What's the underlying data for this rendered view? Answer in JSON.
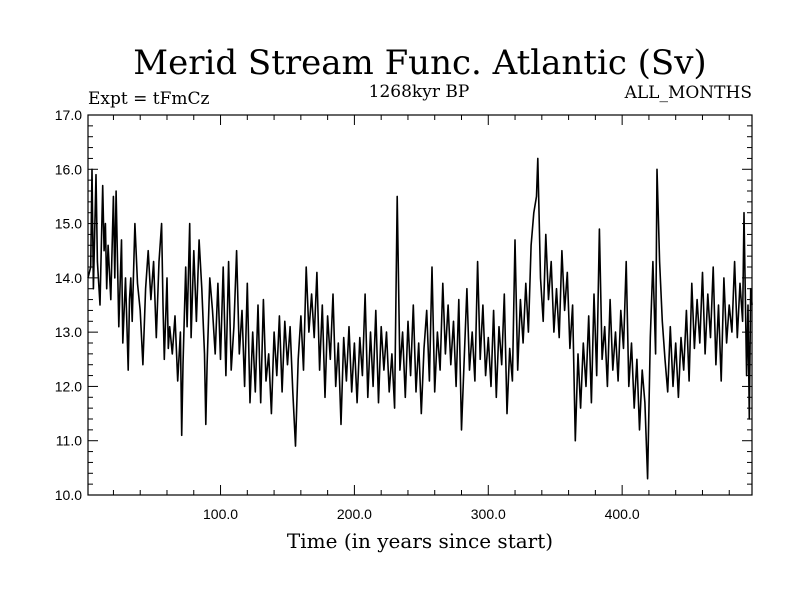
{
  "chart_data": {
    "type": "line",
    "title": "Merid Stream Func. Atlantic (Sv)",
    "subtitle_left": "Expt = tFmCz",
    "subtitle_center": "1268kyr BP",
    "subtitle_right": "ALL_MONTHS",
    "xlabel": "Time (in years since start)",
    "ylabel": "",
    "xlim": [
      1,
      497
    ],
    "ylim": [
      10.0,
      17.0
    ],
    "x_ticks": [
      100,
      200,
      300,
      400
    ],
    "x_tick_labels": [
      "100.0",
      "200.0",
      "300.0",
      "400.0"
    ],
    "x_minor_step": 20,
    "y_ticks": [
      10,
      11,
      12,
      13,
      14,
      15,
      16,
      17
    ],
    "y_tick_labels": [
      "10.0",
      "11.0",
      "12.0",
      "13.0",
      "14.0",
      "15.0",
      "16.0",
      "17.0"
    ],
    "y_minor_step": 0.2,
    "grid": false,
    "series": [
      {
        "name": "Merid Stream Func. Atlantic",
        "points": [
          [
            1,
            14.0
          ],
          [
            3,
            14.2
          ],
          [
            4,
            16.0
          ],
          [
            5,
            13.8
          ],
          [
            7,
            15.9
          ],
          [
            8,
            14.3
          ],
          [
            10,
            13.5
          ],
          [
            12,
            15.7
          ],
          [
            13,
            14.5
          ],
          [
            14,
            15.0
          ],
          [
            15,
            13.8
          ],
          [
            16,
            14.6
          ],
          [
            18,
            13.6
          ],
          [
            20,
            15.5
          ],
          [
            21,
            14.0
          ],
          [
            22,
            15.6
          ],
          [
            24,
            13.1
          ],
          [
            26,
            14.7
          ],
          [
            27,
            12.8
          ],
          [
            29,
            14.0
          ],
          [
            30,
            13.2
          ],
          [
            31,
            12.3
          ],
          [
            32,
            13.6
          ],
          [
            33,
            14.0
          ],
          [
            34,
            13.2
          ],
          [
            36,
            15.0
          ],
          [
            38,
            13.9
          ],
          [
            40,
            13.4
          ],
          [
            42,
            12.4
          ],
          [
            44,
            13.8
          ],
          [
            46,
            14.5
          ],
          [
            48,
            13.6
          ],
          [
            50,
            14.3
          ],
          [
            52,
            12.9
          ],
          [
            54,
            14.3
          ],
          [
            56,
            15.0
          ],
          [
            57,
            13.5
          ],
          [
            58,
            12.5
          ],
          [
            60,
            14.0
          ],
          [
            61,
            12.7
          ],
          [
            62,
            13.1
          ],
          [
            64,
            12.6
          ],
          [
            66,
            13.3
          ],
          [
            68,
            12.1
          ],
          [
            70,
            13.0
          ],
          [
            71,
            11.1
          ],
          [
            72,
            12.4
          ],
          [
            74,
            14.2
          ],
          [
            75,
            13.1
          ],
          [
            77,
            15.0
          ],
          [
            78,
            12.9
          ],
          [
            80,
            14.5
          ],
          [
            82,
            13.2
          ],
          [
            84,
            14.7
          ],
          [
            86,
            13.8
          ],
          [
            88,
            12.6
          ],
          [
            89,
            11.3
          ],
          [
            90,
            12.4
          ],
          [
            92,
            14.0
          ],
          [
            94,
            13.4
          ],
          [
            96,
            12.6
          ],
          [
            98,
            13.9
          ],
          [
            100,
            12.5
          ],
          [
            102,
            14.2
          ],
          [
            104,
            12.2
          ],
          [
            106,
            14.3
          ],
          [
            108,
            12.3
          ],
          [
            110,
            13.1
          ],
          [
            112,
            14.5
          ],
          [
            114,
            12.6
          ],
          [
            116,
            13.4
          ],
          [
            118,
            12.0
          ],
          [
            120,
            13.9
          ],
          [
            122,
            11.7
          ],
          [
            124,
            13.0
          ],
          [
            126,
            11.9
          ],
          [
            128,
            13.5
          ],
          [
            130,
            11.7
          ],
          [
            132,
            13.6
          ],
          [
            134,
            12.1
          ],
          [
            136,
            12.6
          ],
          [
            138,
            11.5
          ],
          [
            140,
            13.0
          ],
          [
            142,
            12.2
          ],
          [
            144,
            13.3
          ],
          [
            146,
            11.9
          ],
          [
            148,
            13.2
          ],
          [
            150,
            12.4
          ],
          [
            152,
            13.1
          ],
          [
            154,
            11.9
          ],
          [
            156,
            10.9
          ],
          [
            158,
            12.5
          ],
          [
            160,
            13.3
          ],
          [
            162,
            12.3
          ],
          [
            164,
            14.2
          ],
          [
            166,
            13.0
          ],
          [
            168,
            13.7
          ],
          [
            170,
            12.9
          ],
          [
            172,
            14.1
          ],
          [
            174,
            12.3
          ],
          [
            176,
            13.5
          ],
          [
            178,
            11.8
          ],
          [
            180,
            13.3
          ],
          [
            182,
            12.5
          ],
          [
            184,
            13.7
          ],
          [
            186,
            12.0
          ],
          [
            188,
            12.8
          ],
          [
            190,
            11.3
          ],
          [
            192,
            12.9
          ],
          [
            194,
            12.1
          ],
          [
            196,
            13.1
          ],
          [
            198,
            11.9
          ],
          [
            200,
            12.8
          ],
          [
            202,
            11.7
          ],
          [
            204,
            12.9
          ],
          [
            206,
            12.2
          ],
          [
            208,
            13.7
          ],
          [
            210,
            11.8
          ],
          [
            212,
            13.0
          ],
          [
            214,
            12.0
          ],
          [
            216,
            13.4
          ],
          [
            218,
            11.7
          ],
          [
            220,
            13.1
          ],
          [
            222,
            12.3
          ],
          [
            224,
            13.0
          ],
          [
            226,
            11.9
          ],
          [
            228,
            12.6
          ],
          [
            230,
            11.6
          ],
          [
            232,
            15.5
          ],
          [
            234,
            12.3
          ],
          [
            236,
            13.0
          ],
          [
            238,
            11.8
          ],
          [
            240,
            13.2
          ],
          [
            242,
            12.2
          ],
          [
            244,
            13.5
          ],
          [
            246,
            11.9
          ],
          [
            248,
            12.8
          ],
          [
            250,
            11.5
          ],
          [
            252,
            12.7
          ],
          [
            254,
            13.4
          ],
          [
            256,
            12.1
          ],
          [
            258,
            14.2
          ],
          [
            260,
            11.9
          ],
          [
            262,
            13.0
          ],
          [
            264,
            12.3
          ],
          [
            266,
            13.9
          ],
          [
            268,
            12.6
          ],
          [
            270,
            13.5
          ],
          [
            272,
            12.4
          ],
          [
            274,
            13.2
          ],
          [
            276,
            12.0
          ],
          [
            278,
            13.6
          ],
          [
            280,
            11.2
          ],
          [
            282,
            12.5
          ],
          [
            284,
            13.8
          ],
          [
            286,
            12.3
          ],
          [
            288,
            13.0
          ],
          [
            290,
            12.1
          ],
          [
            292,
            14.3
          ],
          [
            294,
            12.5
          ],
          [
            296,
            13.5
          ],
          [
            298,
            12.2
          ],
          [
            300,
            12.9
          ],
          [
            302,
            12.0
          ],
          [
            304,
            13.4
          ],
          [
            306,
            11.8
          ],
          [
            308,
            13.1
          ],
          [
            310,
            12.4
          ],
          [
            312,
            13.7
          ],
          [
            314,
            11.5
          ],
          [
            316,
            12.7
          ],
          [
            318,
            12.1
          ],
          [
            320,
            14.7
          ],
          [
            322,
            12.3
          ],
          [
            324,
            13.6
          ],
          [
            326,
            12.8
          ],
          [
            328,
            13.9
          ],
          [
            330,
            13.0
          ],
          [
            332,
            14.6
          ],
          [
            334,
            15.2
          ],
          [
            336,
            15.5
          ],
          [
            337,
            16.2
          ],
          [
            339,
            14.0
          ],
          [
            341,
            13.2
          ],
          [
            343,
            14.8
          ],
          [
            345,
            13.6
          ],
          [
            347,
            14.3
          ],
          [
            349,
            13.0
          ],
          [
            351,
            13.8
          ],
          [
            353,
            12.9
          ],
          [
            355,
            14.5
          ],
          [
            357,
            13.4
          ],
          [
            359,
            14.1
          ],
          [
            361,
            12.7
          ],
          [
            363,
            13.5
          ],
          [
            365,
            11.0
          ],
          [
            367,
            12.6
          ],
          [
            369,
            11.6
          ],
          [
            371,
            12.8
          ],
          [
            373,
            12.0
          ],
          [
            375,
            13.3
          ],
          [
            377,
            11.7
          ],
          [
            379,
            13.7
          ],
          [
            381,
            12.2
          ],
          [
            383,
            14.9
          ],
          [
            385,
            12.5
          ],
          [
            387,
            13.1
          ],
          [
            389,
            12.0
          ],
          [
            391,
            13.6
          ],
          [
            393,
            12.3
          ],
          [
            395,
            13.0
          ],
          [
            397,
            12.1
          ],
          [
            399,
            13.4
          ],
          [
            401,
            12.7
          ],
          [
            403,
            14.3
          ],
          [
            405,
            12.0
          ],
          [
            407,
            12.8
          ],
          [
            409,
            11.6
          ],
          [
            411,
            12.5
          ],
          [
            413,
            11.2
          ],
          [
            415,
            12.3
          ],
          [
            417,
            11.7
          ],
          [
            419,
            10.3
          ],
          [
            421,
            12.9
          ],
          [
            423,
            14.3
          ],
          [
            425,
            12.6
          ],
          [
            426,
            16.0
          ],
          [
            428,
            14.3
          ],
          [
            430,
            13.2
          ],
          [
            432,
            12.5
          ],
          [
            434,
            11.9
          ],
          [
            436,
            13.1
          ],
          [
            438,
            12.0
          ],
          [
            440,
            12.8
          ],
          [
            442,
            11.8
          ],
          [
            444,
            12.9
          ],
          [
            446,
            12.3
          ],
          [
            448,
            13.4
          ],
          [
            450,
            12.1
          ],
          [
            452,
            13.9
          ],
          [
            454,
            12.7
          ],
          [
            456,
            13.6
          ],
          [
            458,
            12.8
          ],
          [
            460,
            14.1
          ],
          [
            462,
            12.6
          ],
          [
            464,
            13.7
          ],
          [
            466,
            12.9
          ],
          [
            468,
            14.2
          ],
          [
            470,
            12.4
          ],
          [
            472,
            13.5
          ],
          [
            474,
            12.1
          ],
          [
            476,
            14.0
          ],
          [
            478,
            12.8
          ],
          [
            480,
            13.5
          ],
          [
            482,
            13.0
          ],
          [
            484,
            14.3
          ],
          [
            486,
            12.9
          ],
          [
            488,
            13.9
          ],
          [
            490,
            13.2
          ],
          [
            491,
            15.2
          ],
          [
            493,
            12.2
          ],
          [
            494,
            13.5
          ],
          [
            495,
            11.4
          ],
          [
            496,
            13.8
          ],
          [
            497,
            13.5
          ]
        ]
      }
    ]
  }
}
